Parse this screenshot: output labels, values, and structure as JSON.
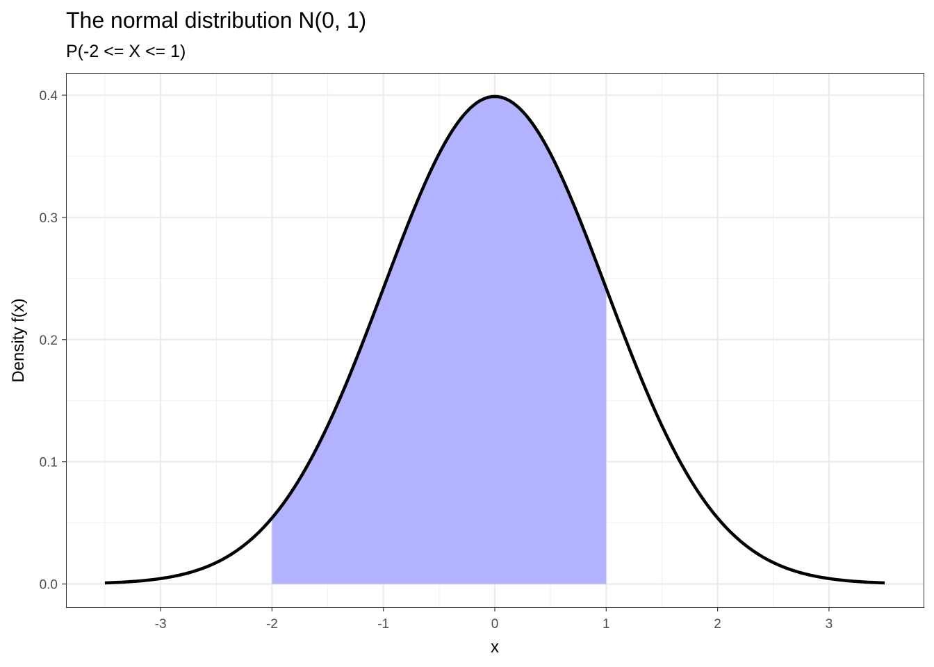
{
  "chart_data": {
    "type": "area",
    "title": "The normal distribution N(0, 1)",
    "subtitle": "P(-2 <= X <= 1)",
    "xlabel": "x",
    "ylabel": "Density f(x)",
    "xlim": [
      -3.5,
      3.5
    ],
    "ylim": [
      0,
      0.4
    ],
    "x_ticks": [
      -3,
      -2,
      -1,
      0,
      1,
      2,
      3
    ],
    "x_tick_labels": [
      "-3",
      "-2",
      "-1",
      "0",
      "1",
      "2",
      "3"
    ],
    "y_ticks": [
      0.0,
      0.1,
      0.2,
      0.3,
      0.4
    ],
    "y_tick_labels": [
      "0.0",
      "0.1",
      "0.2",
      "0.3",
      "0.4"
    ],
    "grid": true,
    "distribution": {
      "mean": 0,
      "sd": 1
    },
    "shaded_interval": [
      -2,
      1
    ],
    "x": [
      -3.5,
      -3.0,
      -2.5,
      -2.0,
      -1.5,
      -1.0,
      -0.5,
      0.0,
      0.5,
      1.0,
      1.5,
      2.0,
      2.5,
      3.0,
      3.5
    ],
    "y": [
      0.0009,
      0.0044,
      0.0175,
      0.054,
      0.1295,
      0.242,
      0.3521,
      0.3989,
      0.3521,
      0.242,
      0.1295,
      0.054,
      0.0175,
      0.0044,
      0.0009
    ],
    "colors": {
      "curve": "#000000",
      "fill": "#b2b2fe",
      "grid_major": "#ebebeb",
      "grid_minor": "#f2f2f2",
      "panel_border": "#333333"
    }
  }
}
